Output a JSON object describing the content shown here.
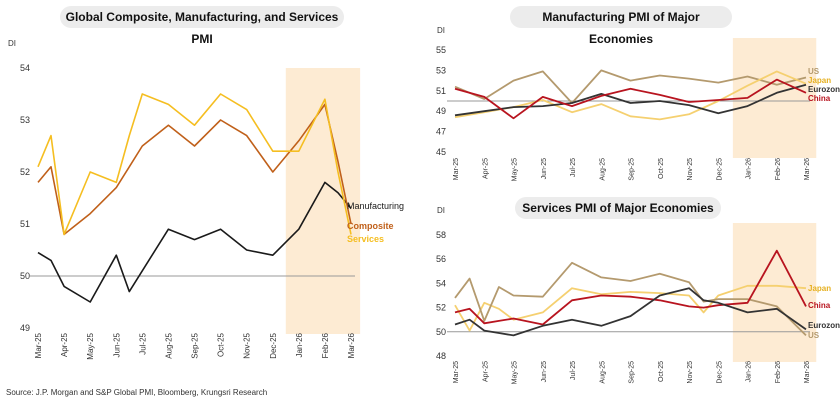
{
  "source": "Source: J.P. Morgan and S&P Global PMI, Bloomberg, Krungsri Research",
  "chart_data": [
    {
      "type": "line",
      "title": "Global Composite, Manufacturing, and Services PMI",
      "ylabel": "DI",
      "ylim": [
        49,
        54
      ],
      "yticks": [
        49,
        50,
        51,
        52,
        53,
        54
      ],
      "reference_line": 50,
      "shaded_range": [
        "Jan-26",
        "Mar-26"
      ],
      "categories": [
        "Mar-25",
        "Apr-25",
        "May-25",
        "Jun-25",
        "Jul-25",
        "Aug-25",
        "Sep-25",
        "Oct-25",
        "Nov-25",
        "Dec-25",
        "Jan-26",
        "Feb-26",
        "Mar-26"
      ],
      "x": [
        0,
        0.5,
        1,
        2,
        3,
        3.5,
        4,
        5,
        6,
        7,
        8,
        9,
        10,
        11,
        11.5,
        12
      ],
      "series": [
        {
          "name": "Manufacturing",
          "color": "#1a1a1a",
          "values": [
            50.45,
            50.3,
            49.8,
            49.5,
            50.4,
            49.7,
            50.1,
            50.9,
            50.7,
            50.9,
            50.5,
            50.4,
            50.9,
            51.8,
            51.6,
            51.3
          ]
        },
        {
          "name": "Composite",
          "color": "#c0601a",
          "values": [
            51.8,
            52.1,
            50.8,
            51.2,
            51.7,
            52.1,
            52.5,
            52.9,
            52.5,
            53.0,
            52.7,
            52.0,
            52.6,
            53.3,
            52.2,
            51.0
          ]
        },
        {
          "name": "Services",
          "color": "#f5be21",
          "values": [
            52.1,
            52.7,
            50.8,
            52.0,
            51.8,
            52.7,
            53.5,
            53.3,
            52.9,
            53.5,
            53.2,
            52.4,
            52.4,
            53.4,
            52.0,
            50.8
          ]
        }
      ]
    },
    {
      "type": "line",
      "title": "Manufacturing PMI of Major Economies",
      "ylabel": "DI",
      "ylim": [
        45,
        55
      ],
      "yticks": [
        45,
        47,
        49,
        51,
        53,
        55
      ],
      "reference_line": 50,
      "shaded_range": [
        "Jan-26",
        "Mar-26"
      ],
      "categories": [
        "Mar-25",
        "Apr-25",
        "May-25",
        "Jun-25",
        "Jul-25",
        "Aug-25",
        "Sep-25",
        "Oct-25",
        "Nov-25",
        "Dec-25",
        "Jan-26",
        "Feb-26",
        "Mar-26"
      ],
      "series": [
        {
          "name": "US",
          "color": "#b49a6e",
          "values": [
            51.4,
            50.2,
            52.0,
            52.9,
            49.8,
            53.0,
            52.0,
            52.5,
            52.2,
            51.8,
            52.4,
            51.6,
            52.3
          ]
        },
        {
          "name": "Japan",
          "color": "#f5d070",
          "values": [
            48.4,
            48.9,
            49.4,
            50.1,
            48.9,
            49.7,
            48.5,
            48.2,
            48.7,
            50.0,
            51.5,
            52.9,
            51.7
          ]
        },
        {
          "name": "Eurozone",
          "color": "#333333",
          "values": [
            48.6,
            49.0,
            49.4,
            49.5,
            49.8,
            50.7,
            49.8,
            50.0,
            49.6,
            48.8,
            49.5,
            50.8,
            51.6
          ]
        },
        {
          "name": "China",
          "color": "#b8141f",
          "values": [
            51.2,
            50.4,
            48.3,
            50.4,
            49.5,
            50.5,
            51.2,
            50.6,
            49.9,
            50.1,
            50.3,
            52.1,
            50.8
          ]
        }
      ]
    },
    {
      "type": "line",
      "title": "Services PMI of Major Economies",
      "ylabel": "DI",
      "ylim": [
        48,
        58
      ],
      "yticks": [
        48,
        50,
        52,
        54,
        56,
        58
      ],
      "reference_line": 50,
      "shaded_range": [
        "Jan-26",
        "Mar-26"
      ],
      "categories": [
        "Mar-25",
        "Apr-25",
        "May-25",
        "Jun-25",
        "Jul-25",
        "Aug-25",
        "Sep-25",
        "Oct-25",
        "Nov-25",
        "Dec-25",
        "Jan-26",
        "Feb-26",
        "Mar-26"
      ],
      "x": [
        0,
        0.5,
        1,
        1.5,
        2,
        3,
        4,
        5,
        6,
        7,
        8,
        8.5,
        9,
        10,
        11,
        12
      ],
      "series": [
        {
          "name": "Japan",
          "color": "#f5d070",
          "values": [
            52.2,
            50.1,
            52.4,
            51.9,
            51.0,
            51.6,
            53.6,
            53.1,
            53.3,
            53.2,
            53.0,
            51.6,
            53.0,
            53.8,
            53.8,
            53.6
          ]
        },
        {
          "name": "US",
          "color": "#b49a6e",
          "values": [
            52.8,
            54.4,
            50.9,
            53.7,
            53.0,
            52.9,
            55.7,
            54.5,
            54.2,
            54.8,
            54.1,
            52.5,
            52.7,
            52.7,
            52.1,
            49.7
          ]
        },
        {
          "name": "China",
          "color": "#b8141f",
          "values": [
            51.6,
            51.9,
            50.7,
            50.9,
            51.1,
            50.6,
            52.6,
            53.0,
            52.9,
            52.6,
            52.1,
            52.0,
            52.2,
            52.4,
            56.7,
            52.1
          ]
        },
        {
          "name": "Eurozone",
          "color": "#333333",
          "values": [
            50.6,
            51.0,
            50.1,
            49.9,
            49.7,
            50.5,
            51.0,
            50.5,
            51.3,
            53.0,
            53.6,
            52.6,
            52.4,
            51.6,
            51.9,
            50.2
          ]
        }
      ]
    }
  ]
}
